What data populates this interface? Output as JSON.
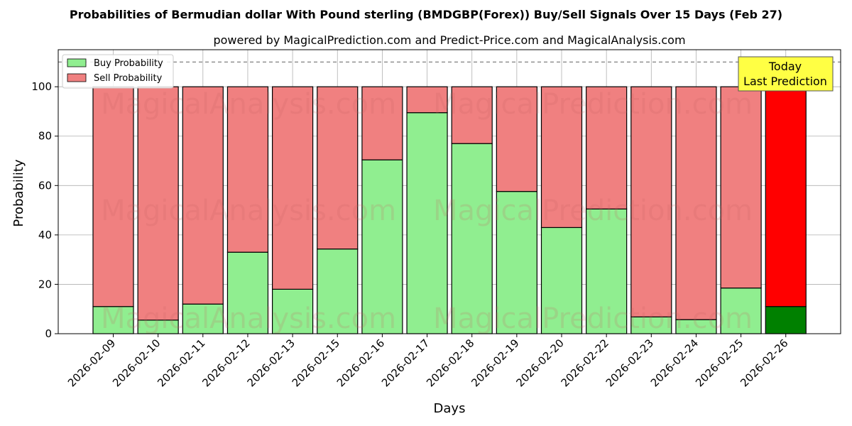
{
  "chart_data": {
    "type": "bar",
    "stacked": true,
    "title": "Probabilities of Bermudian dollar With Pound sterling (BMDGBP(Forex)) Buy/Sell Signals Over 15 Days (Feb 27)",
    "subtitle": "powered by MagicalPrediction.com and Predict-Price.com and MagicalAnalysis.com",
    "xlabel": "Days",
    "ylabel": "Probability",
    "ylim": [
      0,
      115
    ],
    "yticks": [
      0,
      20,
      40,
      60,
      80,
      100
    ],
    "grid": true,
    "legend_position": "top-left",
    "reference_line": 110,
    "categories": [
      "2026-02-09",
      "2026-02-10",
      "2026-02-11",
      "2026-02-12",
      "2026-02-13",
      "2026-02-15",
      "2026-02-16",
      "2026-02-17",
      "2026-02-18",
      "2026-02-19",
      "2026-02-20",
      "2026-02-22",
      "2026-02-23",
      "2026-02-24",
      "2026-02-25",
      "2026-02-26"
    ],
    "series": [
      {
        "name": "Buy Probability",
        "color": "#90ee90",
        "values": [
          11,
          5.5,
          12,
          33,
          18,
          34.3,
          70.4,
          89.5,
          77,
          57.6,
          43,
          50.5,
          6.8,
          5.7,
          18.5,
          11
        ]
      },
      {
        "name": "Sell Probability",
        "color": "#f08080",
        "values": [
          89,
          94.5,
          88,
          67,
          82,
          65.7,
          29.6,
          10.5,
          23,
          42.4,
          57,
          49.5,
          93.2,
          94.3,
          81.5,
          89
        ]
      }
    ],
    "highlight": {
      "index": 15,
      "buy_color": "#008000",
      "sell_color": "#ff0000"
    },
    "annotation": {
      "line1": "Today",
      "line2": "Last Prediction",
      "color": "#ffff44"
    },
    "watermark": "MagicalAnalysis.com",
    "watermark2": "MagicalPrediction.com"
  }
}
